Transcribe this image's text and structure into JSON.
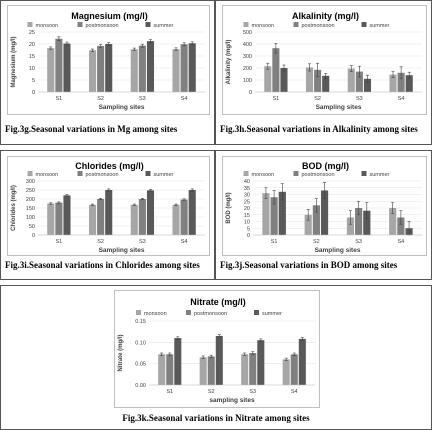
{
  "colors": {
    "monsoon": "#a6a6a6",
    "postmonsoon": "#808080",
    "summer": "#595959",
    "error_bar": "#404040",
    "grid": "#e3e3e3",
    "axis_text": "#404040",
    "title": "#000000"
  },
  "captions": {
    "mg": "Fig.3g.Seasonal variations in Mg among sites",
    "alk": "Fig.3h.Seasonal variations in Alkalinity among sites",
    "cl": "Fig.3i.Seasonal variations in Chlorides among sites",
    "bod": "Fig.3j.Seasonal variations in BOD among sites",
    "no3": "Fig.3k.Seasonal variations in Nitrate among sites"
  },
  "chart_data": [
    {
      "id": "mg",
      "type": "bar",
      "title": "Magnesium (mg/l)",
      "xlabel": "Sampling sites",
      "ylabel": "Magnesium (mg/l)",
      "categories": [
        "S1",
        "S2",
        "S3",
        "S4"
      ],
      "ylim": [
        0,
        25
      ],
      "yticks": [
        0,
        5,
        10,
        15,
        20,
        25
      ],
      "tick_decimals": 0,
      "grid": true,
      "legend": "top-center",
      "series": [
        {
          "name": "monsoon",
          "values": [
            18.3,
            17.4,
            17.8,
            17.9
          ],
          "errors": [
            0.5,
            0.5,
            0.5,
            0.5
          ]
        },
        {
          "name": "postmonsoon",
          "values": [
            22.2,
            19.2,
            19.3,
            19.9
          ],
          "errors": [
            0.8,
            0.6,
            0.6,
            0.6
          ]
        },
        {
          "name": "summer",
          "values": [
            20.2,
            20.0,
            21.2,
            20.3
          ],
          "errors": [
            0.6,
            0.6,
            0.6,
            0.6
          ]
        }
      ]
    },
    {
      "id": "alk",
      "type": "bar",
      "title": "Alkalinity (mg/l)",
      "xlabel": "Sampling sites",
      "ylabel": "Alkalinity (mg/l)",
      "categories": [
        "S1",
        "S2",
        "S3",
        "S4"
      ],
      "ylim": [
        0,
        500
      ],
      "yticks": [
        0,
        100,
        200,
        300,
        400,
        500
      ],
      "tick_decimals": 0,
      "grid": true,
      "legend": "top-center",
      "series": [
        {
          "name": "monsoon",
          "values": [
            215,
            205,
            195,
            145
          ],
          "errors": [
            25,
            30,
            25,
            25
          ]
        },
        {
          "name": "postmonsoon",
          "values": [
            365,
            185,
            170,
            160
          ],
          "errors": [
            40,
            55,
            45,
            50
          ]
        },
        {
          "name": "summer",
          "values": [
            200,
            135,
            110,
            140
          ],
          "errors": [
            25,
            20,
            30,
            25
          ]
        }
      ]
    },
    {
      "id": "cl",
      "type": "bar",
      "title": "Chlorides (mg/l)",
      "xlabel": "Sampling sites",
      "ylabel": "Chlorides (mg/l)",
      "categories": [
        "S1",
        "S2",
        "S3",
        "S4"
      ],
      "ylim": [
        0,
        300
      ],
      "yticks": [
        0,
        50,
        100,
        150,
        200,
        250,
        300
      ],
      "tick_decimals": 0,
      "grid": true,
      "legend": "top-center",
      "series": [
        {
          "name": "monsoon",
          "values": [
            175,
            168,
            168,
            168
          ],
          "errors": [
            4,
            4,
            4,
            4
          ]
        },
        {
          "name": "postmonsoon",
          "values": [
            180,
            200,
            200,
            197
          ],
          "errors": [
            4,
            4,
            4,
            4
          ]
        },
        {
          "name": "summer",
          "values": [
            220,
            250,
            248,
            250
          ],
          "errors": [
            5,
            6,
            5,
            6
          ]
        }
      ]
    },
    {
      "id": "bod",
      "type": "bar",
      "title": "BOD (mg/l)",
      "xlabel": "Sampling sites",
      "ylabel": "BOD (mg/l)",
      "categories": [
        "S1",
        "S2",
        "S3",
        "S4"
      ],
      "ylim": [
        0,
        40
      ],
      "yticks": [
        0,
        5,
        10,
        15,
        20,
        25,
        30,
        35,
        40
      ],
      "tick_decimals": 0,
      "grid": true,
      "legend": "top-center",
      "series": [
        {
          "name": "monsoon",
          "values": [
            31,
            15,
            13,
            20
          ],
          "errors": [
            4,
            4,
            5,
            4
          ]
        },
        {
          "name": "postmonsoon",
          "values": [
            28,
            22,
            20,
            13
          ],
          "errors": [
            5,
            5,
            5,
            5
          ]
        },
        {
          "name": "summer",
          "values": [
            32,
            33,
            18,
            5
          ],
          "errors": [
            6,
            6,
            6,
            5
          ]
        }
      ]
    },
    {
      "id": "no3",
      "type": "bar",
      "title": "Nitrate (mg/l)",
      "xlabel": "sampling sites",
      "ylabel": "Nitrate (mg/l)",
      "categories": [
        "S1",
        "S2",
        "S3",
        "S4"
      ],
      "ylim": [
        0,
        0.15
      ],
      "yticks": [
        0,
        0.05,
        0.1,
        0.15
      ],
      "tick_decimals": 2,
      "grid": true,
      "legend": "top-center",
      "series": [
        {
          "name": "monsoon",
          "values": [
            0.072,
            0.065,
            0.072,
            0.06
          ],
          "errors": [
            0.003,
            0.003,
            0.003,
            0.003
          ]
        },
        {
          "name": "postmonsoon",
          "values": [
            0.072,
            0.067,
            0.075,
            0.072
          ],
          "errors": [
            0.003,
            0.003,
            0.003,
            0.003
          ]
        },
        {
          "name": "summer",
          "values": [
            0.11,
            0.115,
            0.105,
            0.108
          ],
          "errors": [
            0.003,
            0.003,
            0.003,
            0.003
          ]
        }
      ]
    }
  ]
}
